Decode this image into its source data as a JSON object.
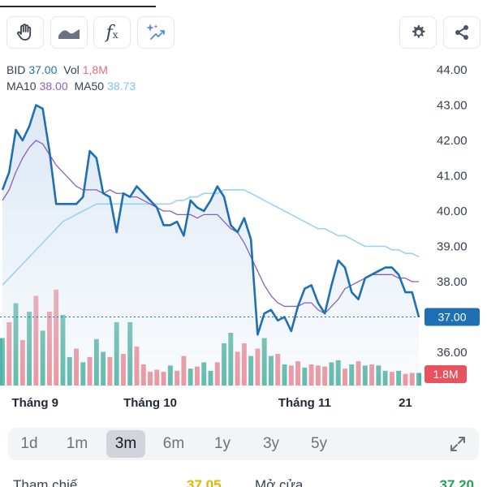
{
  "toolbar": {
    "fx_label": "f",
    "fx_sub": "x"
  },
  "legend": {
    "ticker_label": "BID",
    "price": "37.00",
    "vol_label": "Vol",
    "volume": "1,8M",
    "ma10_label": "MA10",
    "ma10_value": "38.00",
    "ma50_label": "MA50",
    "ma50_value": "38.73"
  },
  "colors": {
    "price_line": "#1e6fb3",
    "price_fill": "#dbe7f4",
    "ma10": "#8b5fbf",
    "ma50": "#9ad2f3",
    "vol_up": "#4fb3a2",
    "vol_down": "#ec8a94",
    "price_badge": "#1e6fb3",
    "vol_badge": "#e8525f"
  },
  "chart_data": {
    "type": "line",
    "y_ticks": [
      "44.00",
      "43.00",
      "42.00",
      "41.00",
      "40.00",
      "39.00",
      "38.00",
      "37.00",
      "36.00"
    ],
    "ylim": [
      35.3,
      44.2
    ],
    "x_labels": [
      {
        "label": "Tháng 9",
        "index": 1
      },
      {
        "label": "Tháng 10",
        "index": 22
      },
      {
        "label": "Tháng 11",
        "index": 45
      },
      {
        "label": "21",
        "index": 60
      }
    ],
    "close": [
      40.6,
      41.1,
      42.3,
      42.0,
      42.4,
      43.0,
      42.9,
      41.7,
      40.2,
      40.2,
      40.2,
      40.2,
      40.4,
      41.7,
      41.5,
      40.5,
      40.4,
      39.4,
      40.5,
      40.4,
      40.7,
      40.5,
      40.3,
      40.1,
      39.6,
      39.6,
      39.7,
      39.3,
      40.3,
      40.1,
      40.0,
      40.3,
      40.7,
      40.4,
      39.6,
      39.4,
      39.8,
      39.2,
      36.5,
      37.1,
      37.2,
      36.9,
      37.0,
      36.6,
      37.3,
      37.8,
      37.9,
      37.4,
      37.1,
      37.9,
      38.6,
      38.4,
      37.7,
      37.5,
      38.1,
      38.2,
      38.3,
      38.4,
      38.4,
      38.2,
      37.7,
      37.7,
      37.0
    ],
    "ma10": [
      40.3,
      40.6,
      41.1,
      41.5,
      41.8,
      42.0,
      41.9,
      41.6,
      41.3,
      41.1,
      40.9,
      40.7,
      40.6,
      40.6,
      40.6,
      40.5,
      40.6,
      40.5,
      40.5,
      40.4,
      40.4,
      40.3,
      40.2,
      40.1,
      40.0,
      40.0,
      39.9,
      39.9,
      39.9,
      39.8,
      39.9,
      39.9,
      39.9,
      39.7,
      39.5,
      39.4,
      39.1,
      38.7,
      38.3,
      37.9,
      37.6,
      37.4,
      37.3,
      37.3,
      37.3,
      37.4,
      37.4,
      37.2,
      37.1,
      37.3,
      37.5,
      37.8,
      37.9,
      38.0,
      38.1,
      38.2,
      38.2,
      38.2,
      38.2,
      38.1,
      38.1,
      38.0,
      38.0
    ],
    "ma50": [
      37.9,
      38.1,
      38.3,
      38.5,
      38.7,
      38.9,
      39.1,
      39.3,
      39.5,
      39.7,
      39.8,
      39.9,
      40.0,
      40.1,
      40.2,
      40.2,
      40.2,
      40.2,
      40.2,
      40.2,
      40.2,
      40.2,
      40.2,
      40.2,
      40.2,
      40.2,
      40.3,
      40.3,
      40.4,
      40.4,
      40.5,
      40.5,
      40.5,
      40.6,
      40.6,
      40.6,
      40.6,
      40.5,
      40.4,
      40.3,
      40.2,
      40.1,
      40.0,
      39.9,
      39.8,
      39.7,
      39.6,
      39.5,
      39.5,
      39.4,
      39.3,
      39.3,
      39.2,
      39.1,
      39.0,
      39.0,
      39.0,
      39.0,
      38.9,
      38.9,
      38.8,
      38.8,
      38.7
    ],
    "volume_rel": [
      0.45,
      0.6,
      0.78,
      0.43,
      0.7,
      0.85,
      0.52,
      0.7,
      0.91,
      0.67,
      0.27,
      0.35,
      0.22,
      0.27,
      0.44,
      0.32,
      0.27,
      0.6,
      0.3,
      0.6,
      0.37,
      0.2,
      0.13,
      0.15,
      0.13,
      0.19,
      0.14,
      0.28,
      0.16,
      0.18,
      0.22,
      0.14,
      0.22,
      0.4,
      0.5,
      0.32,
      0.4,
      0.28,
      0.35,
      0.45,
      0.28,
      0.3,
      0.2,
      0.19,
      0.23,
      0.17,
      0.2,
      0.19,
      0.18,
      0.22,
      0.24,
      0.16,
      0.2,
      0.23,
      0.19,
      0.2,
      0.19,
      0.14,
      0.13,
      0.14,
      0.11,
      0.12,
      0.12
    ],
    "volume_up": [
      true,
      false,
      true,
      false,
      true,
      false,
      true,
      false,
      false,
      true,
      true,
      false,
      true,
      false,
      true,
      true,
      false,
      true,
      false,
      true,
      false,
      false,
      false,
      false,
      false,
      true,
      false,
      false,
      true,
      false,
      true,
      true,
      false,
      true,
      true,
      false,
      false,
      true,
      false,
      true,
      true,
      false,
      true,
      false,
      false,
      true,
      false,
      false,
      false,
      true,
      true,
      false,
      true,
      false,
      true,
      false,
      true,
      true,
      false,
      true,
      false,
      false,
      true
    ],
    "last_price_label": "37.00",
    "last_volume_label": "1.8M",
    "last_price": 37.0,
    "grid": false
  },
  "ranges": [
    "1d",
    "1m",
    "3m",
    "6m",
    "1y",
    "3y",
    "5y"
  ],
  "active_range": "3m",
  "bottom_row": {
    "left_label": "Tham chiế",
    "left_value": "37.05",
    "right_label": "Mở cửa",
    "right_value": "37.20"
  }
}
